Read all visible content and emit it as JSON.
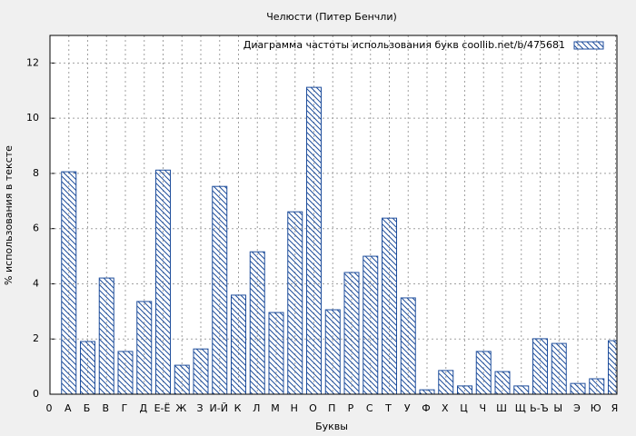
{
  "chart_data": {
    "type": "bar",
    "title": "Челюсти (Питер Бенчли)",
    "xlabel": "Буквы",
    "ylabel": "% использования в тексте",
    "categories": [
      "0",
      "А",
      "Б",
      "В",
      "Г",
      "Д",
      "Е-Ё",
      "Ж",
      "З",
      "И-Й",
      "К",
      "Л",
      "М",
      "Н",
      "О",
      "П",
      "Р",
      "С",
      "Т",
      "У",
      "Ф",
      "Х",
      "Ц",
      "Ч",
      "Ш",
      "Щ",
      "Ь-Ъ",
      "Ы",
      "Э",
      "Ю",
      "Я"
    ],
    "series": [
      {
        "name": "Диаграмма частоты использования букв  coollib.net/b/475681",
        "color": "#1f4e9c",
        "values": [
          null,
          8.06,
          1.91,
          4.21,
          1.55,
          3.36,
          8.12,
          1.05,
          1.64,
          7.53,
          3.59,
          5.16,
          2.96,
          6.61,
          11.12,
          3.06,
          4.41,
          5.0,
          6.38,
          3.49,
          0.16,
          0.86,
          0.3,
          1.55,
          0.82,
          0.3,
          2.01,
          1.84,
          0.39,
          0.56,
          1.94
        ]
      }
    ],
    "ylim": [
      0,
      13
    ],
    "yticks": [
      0,
      2,
      4,
      6,
      8,
      10,
      12
    ],
    "grid": true,
    "legend": "top-right"
  }
}
